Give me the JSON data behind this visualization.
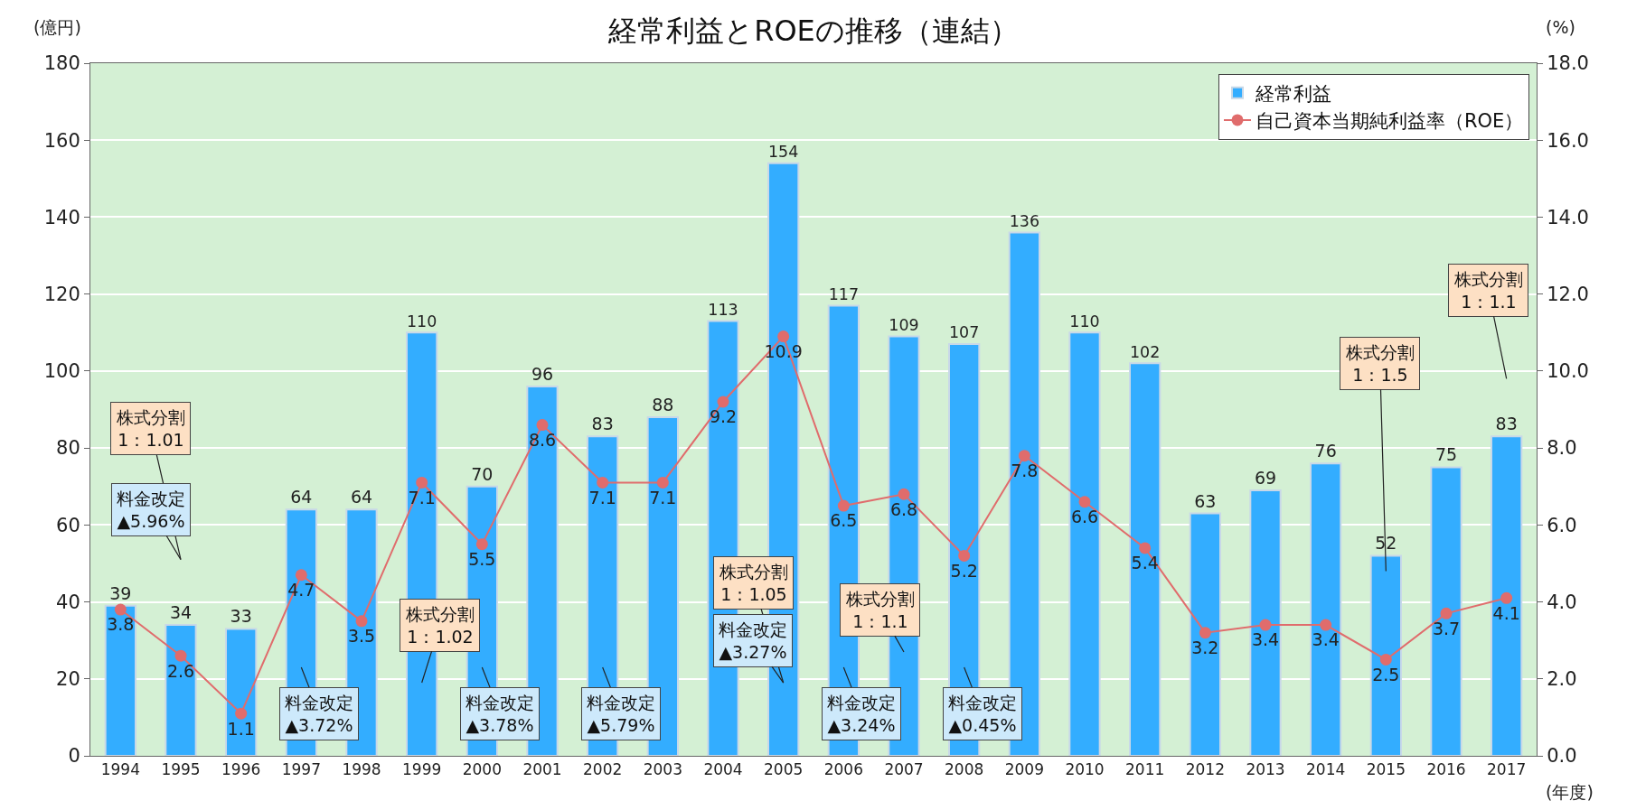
{
  "chart_data": {
    "type": "bar",
    "title": "経常利益とROEの推移（連結）",
    "xlabel": "(年度)",
    "ylabel": "(億円)",
    "y2label": "(%)",
    "categories": [
      "1994",
      "1995",
      "1996",
      "1997",
      "1998",
      "1999",
      "2000",
      "2001",
      "2002",
      "2003",
      "2004",
      "2005",
      "2006",
      "2007",
      "2008",
      "2009",
      "2010",
      "2011",
      "2012",
      "2013",
      "2014",
      "2015",
      "2016",
      "2017"
    ],
    "series": [
      {
        "name": "経常利益",
        "color": "#33adff",
        "values": [
          39,
          34,
          33,
          64,
          64,
          110,
          70,
          96,
          83,
          88,
          113,
          154,
          117,
          109,
          107,
          136,
          110,
          102,
          63,
          69,
          76,
          52,
          75,
          83
        ]
      },
      {
        "name": "自己資本当期純利益率（ROE）",
        "type": "line",
        "axis": "y2",
        "color": "#e06c6c",
        "marker": "circle",
        "values": [
          3.8,
          2.6,
          1.1,
          4.7,
          3.5,
          7.1,
          5.5,
          8.6,
          7.1,
          7.1,
          9.2,
          10.9,
          6.5,
          6.8,
          5.2,
          7.8,
          6.6,
          5.4,
          3.2,
          3.4,
          3.4,
          2.5,
          3.7,
          4.1
        ]
      }
    ],
    "ylim": [
      0,
      180
    ],
    "yticks": [
      0,
      20,
      40,
      60,
      80,
      100,
      120,
      140,
      160,
      180
    ],
    "y2lim": [
      0,
      18
    ],
    "y2ticks": [
      {
        "value": 0,
        "label": "0.0"
      },
      {
        "value": 2,
        "label": "2.0"
      },
      {
        "value": 4,
        "label": "4.0"
      },
      {
        "value": 6,
        "label": "6.0"
      },
      {
        "value": 8,
        "label": "8.0"
      },
      {
        "value": 10,
        "label": "10.0"
      },
      {
        "value": 12,
        "label": "12.0"
      },
      {
        "value": 14,
        "label": "14.0"
      },
      {
        "value": 16,
        "label": "16.0"
      },
      {
        "value": 18,
        "label": "18.0"
      }
    ],
    "data_labels": true,
    "grid": "y",
    "legend": "top right",
    "annotations": [
      "株式分割\n1：1.01",
      "料金改定\n▲5.96%",
      "料金改定\n▲3.72%",
      "株式分割\n1：1.02",
      "料金改定\n▲3.78%",
      "料金改定\n▲5.79%",
      "株式分割\n1：1.05",
      "料金改定\n▲3.27%",
      "株式分割\n1：1.1",
      "料金改定\n▲3.24%",
      "料金改定\n▲0.45%",
      "株式分割\n1：1.5",
      "株式分割\n1：1.1"
    ]
  }
}
